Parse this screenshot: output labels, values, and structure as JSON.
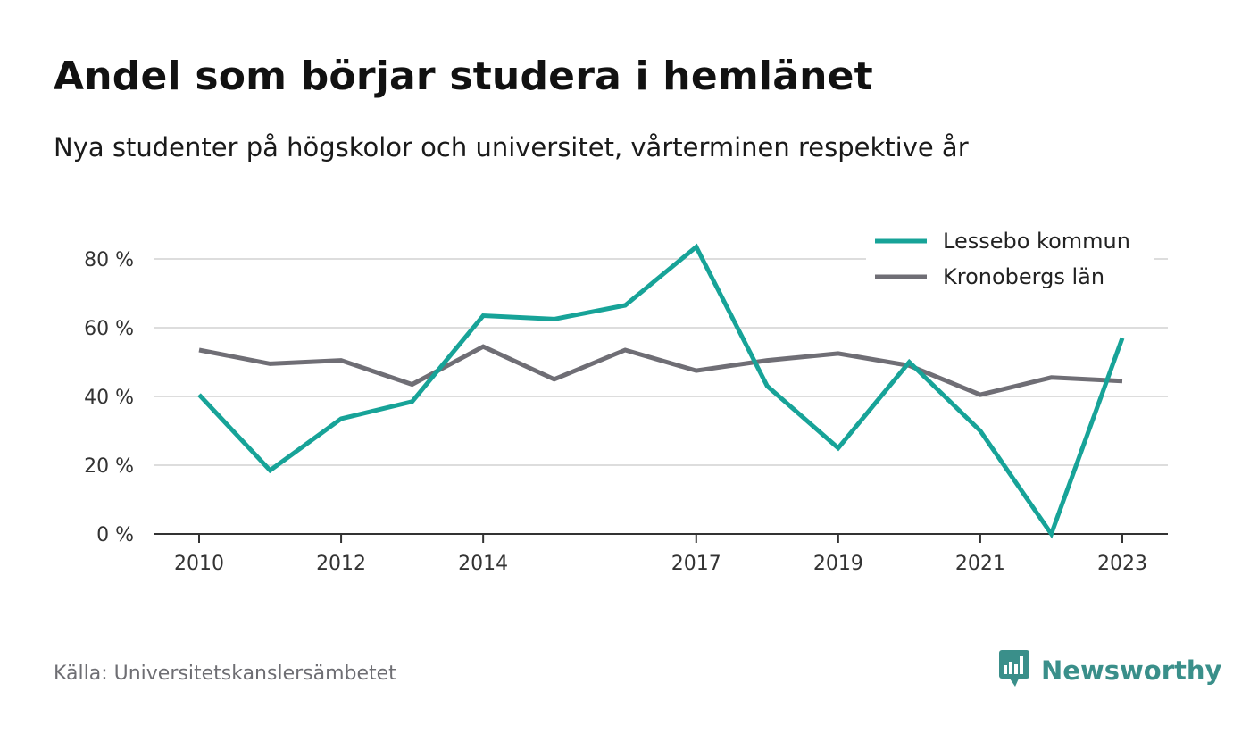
{
  "title": "Andel som börjar studera i hemlänet",
  "subtitle": "Nya studenter på högskolor och universitet, vårterminen respektive år",
  "source": "Källa: Universitetskanslersämbetet",
  "brand": {
    "name": "Newsworthy",
    "icon": "newsworthy-logo-icon",
    "color": "#3a8f8a"
  },
  "chart_data": {
    "type": "line",
    "x": [
      2010,
      2011,
      2012,
      2013,
      2014,
      2015,
      2016,
      2017,
      2018,
      2019,
      2020,
      2021,
      2022,
      2023
    ],
    "x_tick_labels": [
      "2010",
      "2012",
      "2014",
      "2017",
      "2019",
      "2021",
      "2023"
    ],
    "y_tick_labels": [
      "0 %",
      "20 %",
      "40 %",
      "60 %",
      "80 %"
    ],
    "ylim": [
      0,
      85
    ],
    "grid": true,
    "legend_position": "top-right",
    "series": [
      {
        "name": "Lessebo kommun",
        "color": "#17a398",
        "values": [
          40.5,
          18.5,
          33.5,
          38.5,
          63.5,
          62.5,
          66.5,
          83.5,
          43,
          25,
          50,
          30,
          0,
          57
        ]
      },
      {
        "name": "Kronobergs län",
        "color": "#6f6e75",
        "values": [
          53.5,
          49.5,
          50.5,
          43.5,
          54.5,
          45,
          53.5,
          47.5,
          50.5,
          52.5,
          49,
          40.5,
          45.5,
          44.5
        ]
      }
    ]
  }
}
